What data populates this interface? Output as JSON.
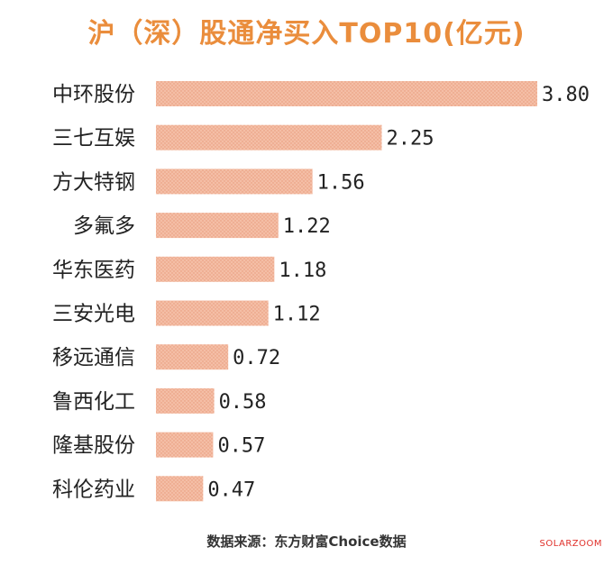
{
  "chart_data": {
    "type": "bar",
    "orientation": "horizontal",
    "title": "沪（深）股通净买入TOP10(亿元)",
    "categories": [
      "中环股份",
      "三七互娱",
      "方大特钢",
      "多氟多",
      "华东医药",
      "三安光电",
      "移远通信",
      "鲁西化工",
      "隆基股份",
      "科伦药业"
    ],
    "values": [
      3.8,
      2.25,
      1.56,
      1.22,
      1.18,
      1.12,
      0.72,
      0.58,
      0.57,
      0.47
    ],
    "value_labels": [
      "3.80",
      "2.25",
      "1.56",
      "1.22",
      "1.18",
      "1.12",
      "0.72",
      "0.58",
      "0.57",
      "0.47"
    ],
    "xlim": [
      0,
      3.8
    ],
    "grid": false,
    "bar_color": "#f2b49a"
  },
  "source_text": "数据来源：东方财富Choice数据",
  "watermark_text": "SOLARZOOM"
}
